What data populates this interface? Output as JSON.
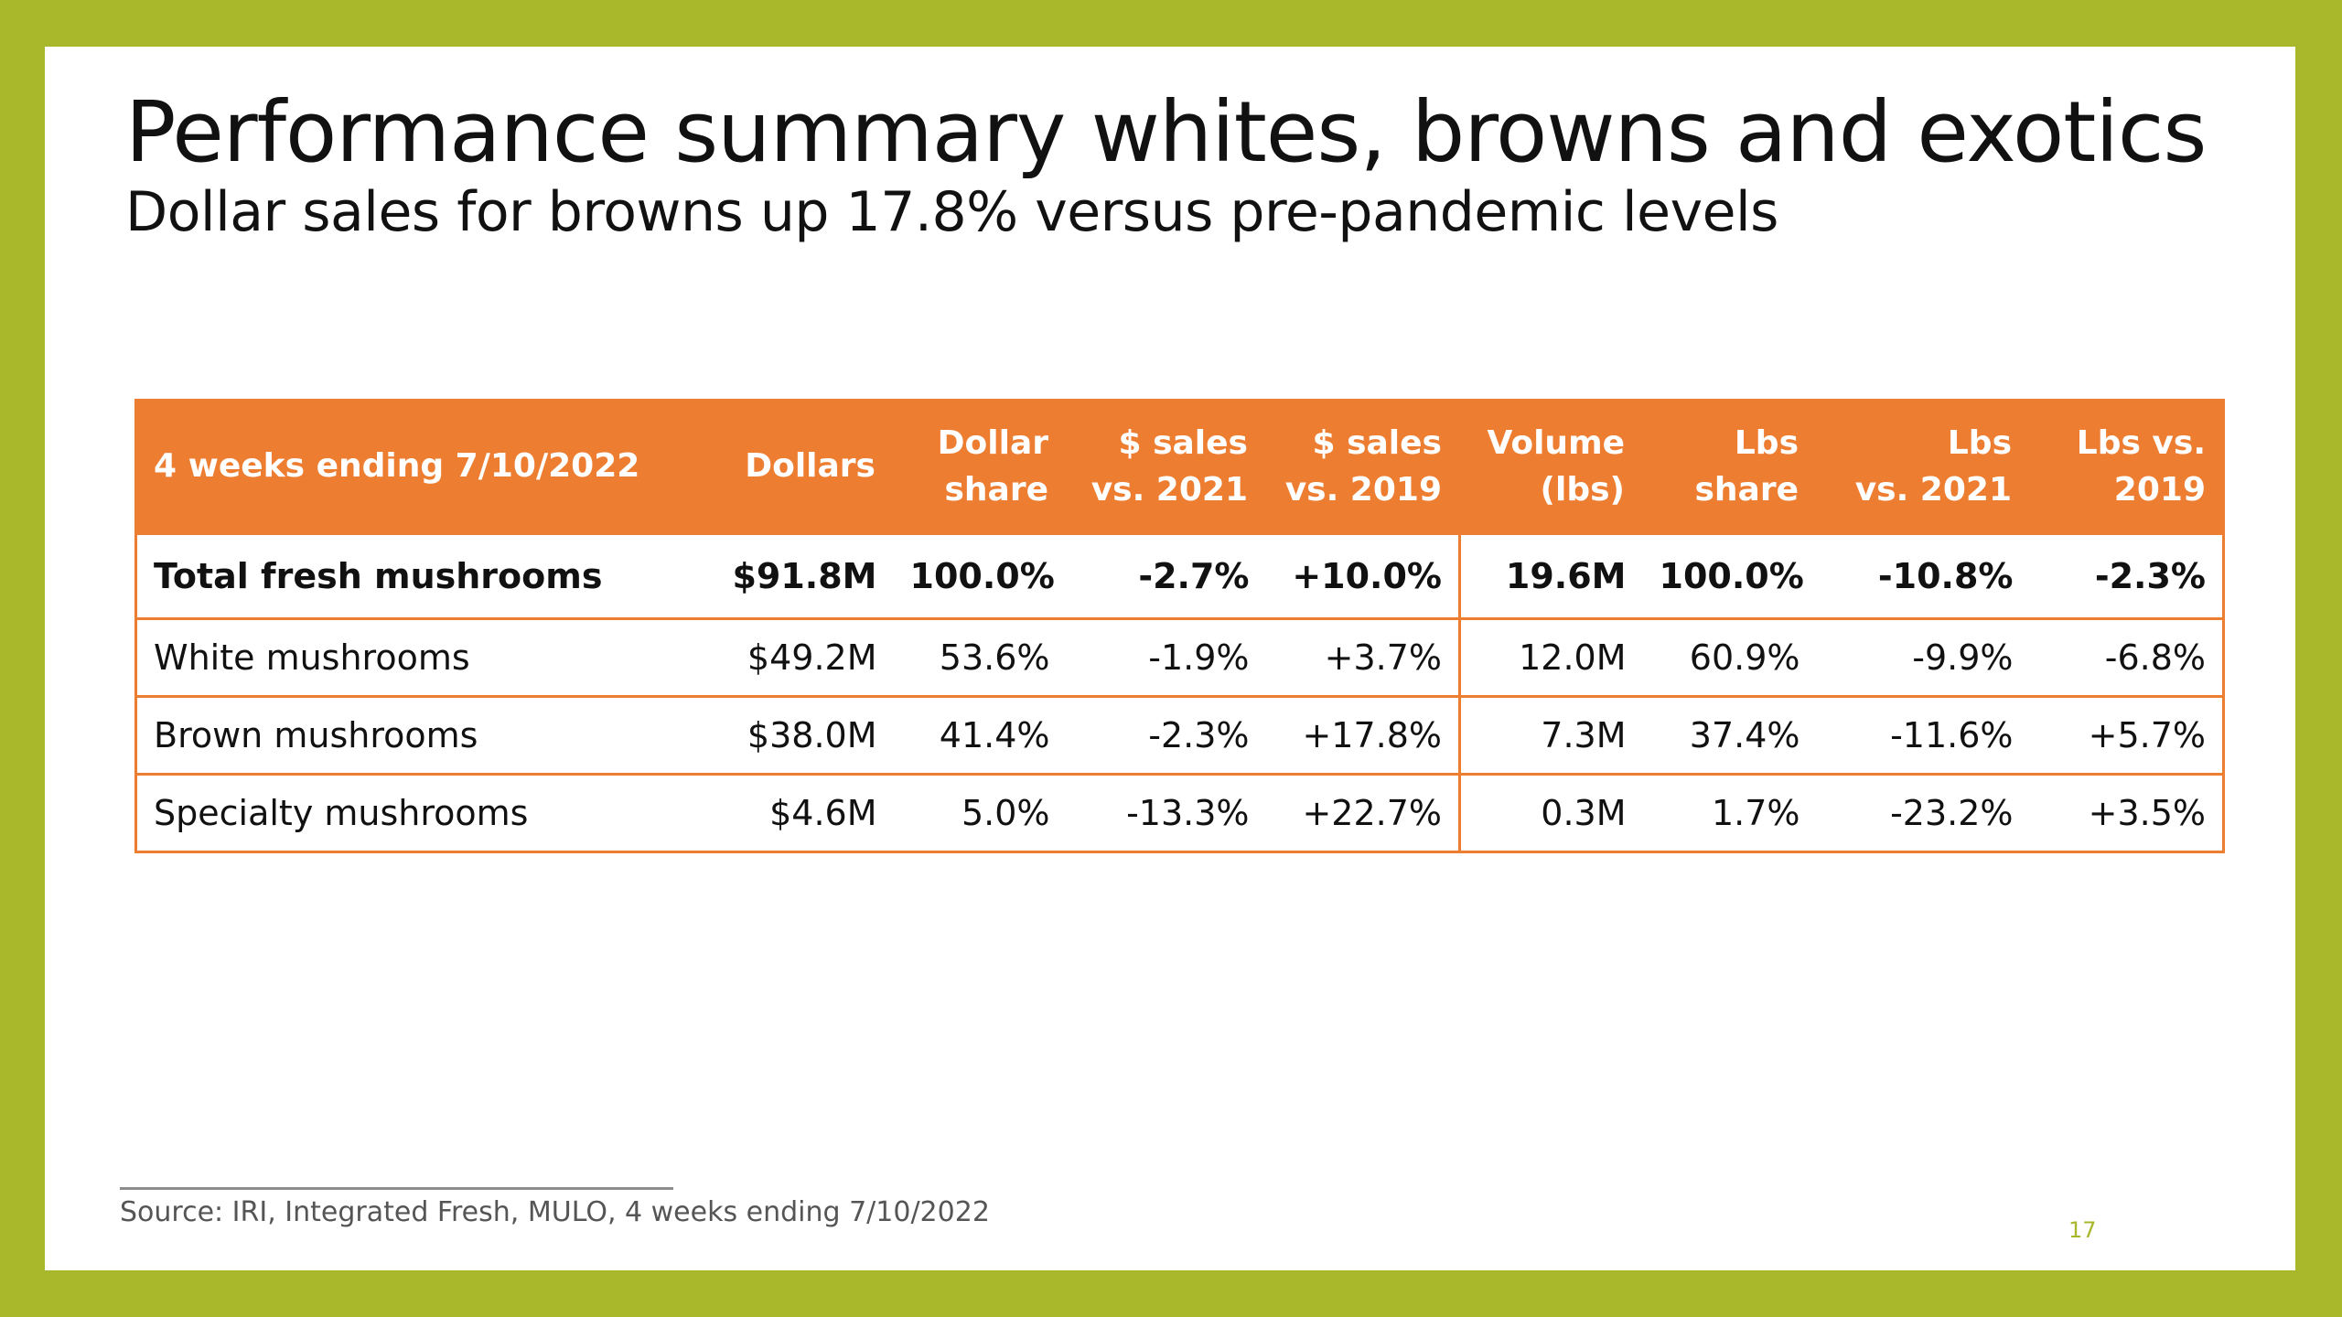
{
  "slide": {
    "title": "Performance summary whites, browns and exotics",
    "subtitle": "Dollar sales for browns up 17.8% versus pre-pandemic levels",
    "source": "Source: IRI, Integrated Fresh, MULO, 4 weeks ending 7/10/2022",
    "page_number": "17"
  },
  "colors": {
    "frame": "#a8b82a",
    "header": "#ed7d31",
    "border": "#ed7d31",
    "page_number": "#a8b82a"
  },
  "table": {
    "headers": [
      [
        "4 weeks ending 7/10/2022"
      ],
      [
        "Dollars"
      ],
      [
        "Dollar",
        "share"
      ],
      [
        "$ sales",
        "vs. 2021"
      ],
      [
        "$ sales",
        "vs. 2019"
      ],
      [
        "Volume",
        "(lbs)"
      ],
      [
        "Lbs",
        "share"
      ],
      [
        "Lbs",
        "vs. 2021"
      ],
      [
        "Lbs vs.",
        "2019"
      ]
    ],
    "rows": [
      [
        "Total fresh mushrooms",
        "$91.8M",
        "100.0%",
        "-2.7%",
        "+10.0%",
        "19.6M",
        "100.0%",
        "-10.8%",
        "-2.3%"
      ],
      [
        "White mushrooms",
        "$49.2M",
        "53.6%",
        "-1.9%",
        "+3.7%",
        "12.0M",
        "60.9%",
        "-9.9%",
        "-6.8%"
      ],
      [
        "Brown mushrooms",
        "$38.0M",
        "41.4%",
        "-2.3%",
        "+17.8%",
        "7.3M",
        "37.4%",
        "-11.6%",
        "+5.7%"
      ],
      [
        "Specialty mushrooms",
        "$4.6M",
        "5.0%",
        "-13.3%",
        "+22.7%",
        "0.3M",
        "1.7%",
        "-23.2%",
        "+3.5%"
      ]
    ]
  }
}
